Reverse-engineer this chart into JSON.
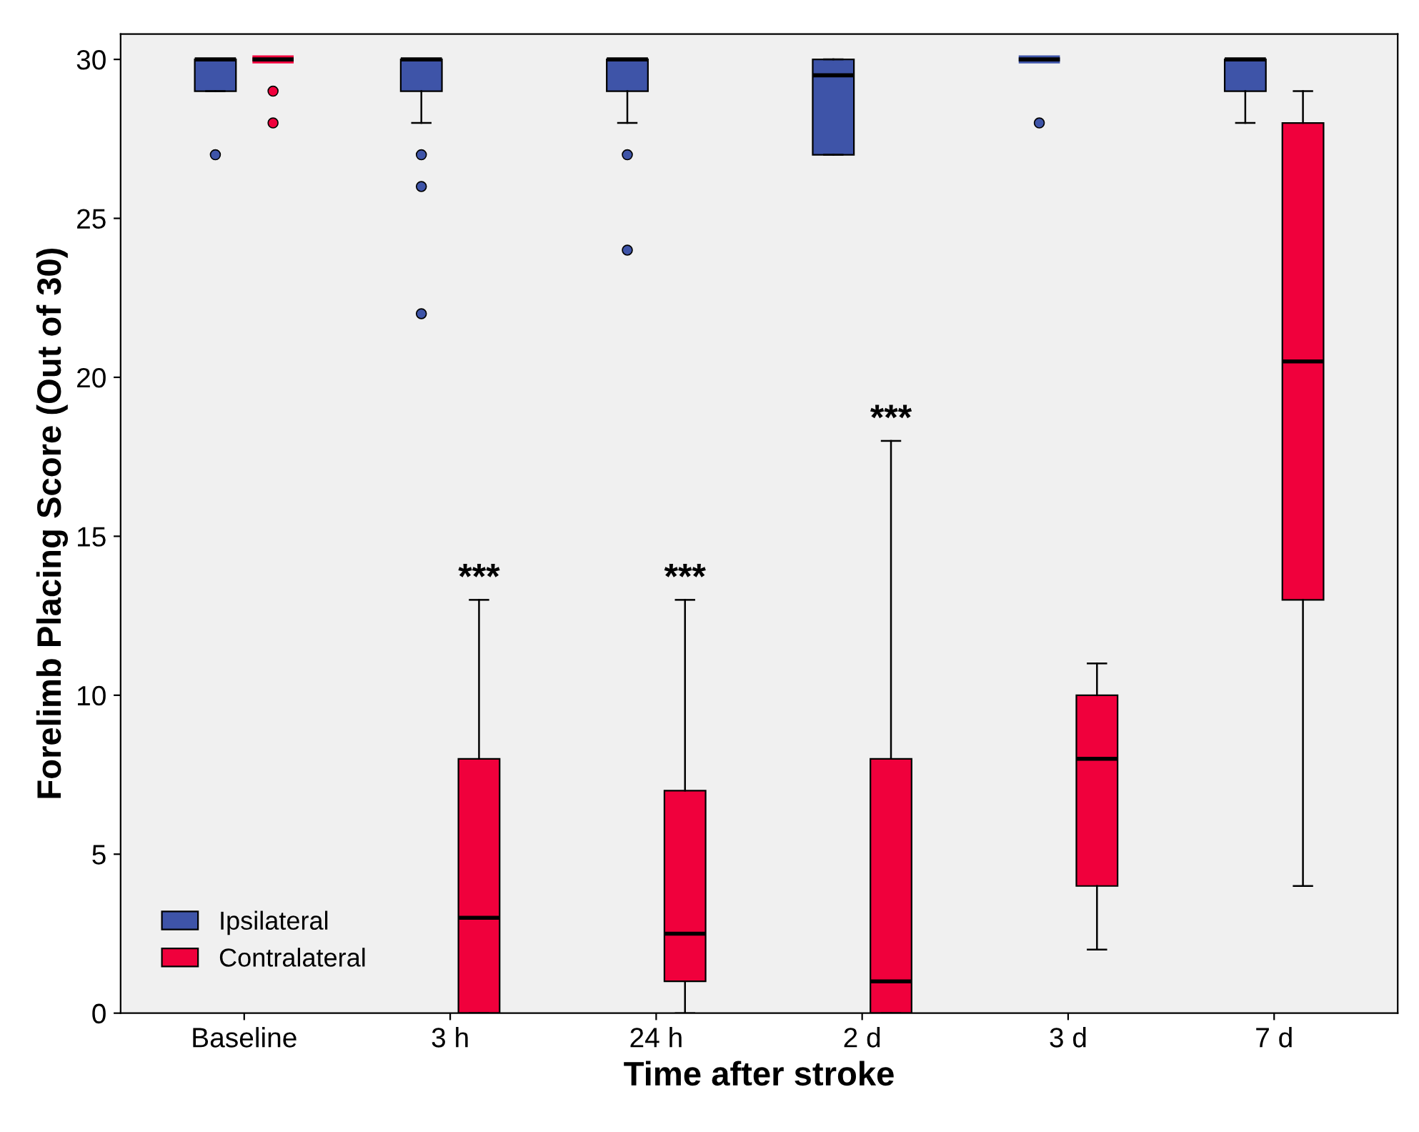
{
  "chart_data": {
    "type": "box",
    "xlabel": "Time after stroke",
    "ylabel": "Forelimb Placing Score (Out of 30)",
    "categories": [
      "Baseline",
      "3 h",
      "24 h",
      "2 d",
      "3 d",
      "7 d"
    ],
    "ylim": [
      0,
      30.8
    ],
    "yticks": [
      0,
      5,
      10,
      15,
      20,
      25,
      30
    ],
    "grid": false,
    "legend": "bottom left",
    "series": [
      {
        "name": "Ipsilateral",
        "color": "#3e54a8",
        "boxes": [
          {
            "low": 29,
            "q1": 29,
            "median": 30,
            "q3": 30,
            "high": 30,
            "outliers": [
              27
            ]
          },
          {
            "low": 28,
            "q1": 29,
            "median": 30,
            "q3": 30,
            "high": 30,
            "outliers": [
              27,
              26,
              22
            ]
          },
          {
            "low": 28,
            "q1": 29,
            "median": 30,
            "q3": 30,
            "high": 30,
            "outliers": [
              27,
              24
            ]
          },
          {
            "low": 27,
            "q1": 27,
            "median": 29.5,
            "q3": 30,
            "high": 30
          },
          {
            "low": 30,
            "q1": 30,
            "median": 30,
            "q3": 30,
            "high": 30,
            "outliers": [
              28
            ]
          },
          {
            "low": 28,
            "q1": 29,
            "median": 30,
            "q3": 30,
            "high": 30
          }
        ]
      },
      {
        "name": "Contralateral",
        "color": "#f0003c",
        "boxes": [
          {
            "low": 30,
            "q1": 30,
            "median": 30,
            "q3": 30,
            "high": 30,
            "outliers": [
              29,
              28
            ]
          },
          {
            "low": 0,
            "q1": 0,
            "median": 3,
            "q3": 8,
            "high": 13
          },
          {
            "low": 0,
            "q1": 1,
            "median": 2.5,
            "q3": 7,
            "high": 13
          },
          {
            "low": 0,
            "q1": 0,
            "median": 1,
            "q3": 8,
            "high": 18
          },
          {
            "low": 2,
            "q1": 4,
            "median": 8,
            "q3": 10,
            "high": 11
          },
          {
            "low": 4,
            "q1": 13,
            "median": 20.5,
            "q3": 28,
            "high": 29
          }
        ]
      }
    ],
    "annotations": [
      "***",
      "***",
      "***"
    ]
  }
}
